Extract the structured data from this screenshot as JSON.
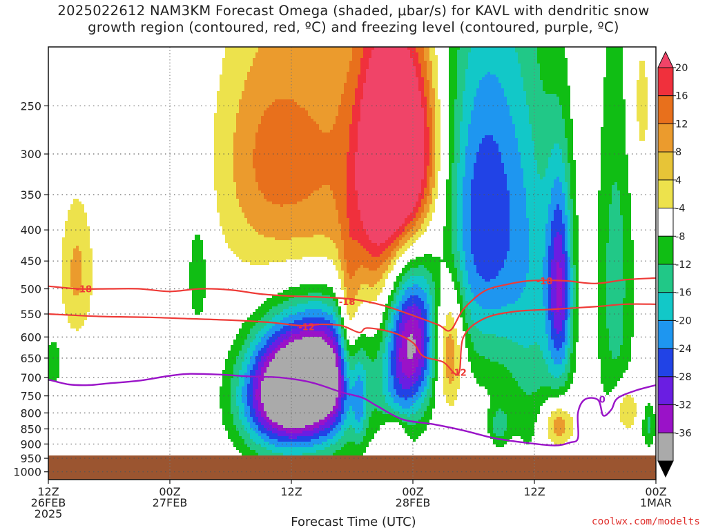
{
  "chart_data": {
    "type": "heatmap",
    "title": {
      "line1": "2025022612 NAM3KM Forecast Omega (shaded, μbar/s) for KAVL with dendritic snow",
      "line2": "growth region (contoured, red, ºC) and freezing level (contoured, purple, ºC)"
    },
    "xlabel": "Forecast Time (UTC)",
    "ylabel": "",
    "x_ticks": [
      {
        "t": 0,
        "lines": [
          "12Z",
          "26FEB",
          "2025"
        ]
      },
      {
        "t": 12,
        "lines": [
          "00Z",
          "27FEB"
        ]
      },
      {
        "t": 24,
        "lines": [
          "12Z"
        ]
      },
      {
        "t": 36,
        "lines": [
          "00Z",
          "28FEB"
        ]
      },
      {
        "t": 48,
        "lines": [
          "12Z"
        ]
      },
      {
        "t": 60,
        "lines": [
          "00Z",
          "1MAR"
        ]
      }
    ],
    "x_range_hours": [
      0,
      60
    ],
    "y_ticks": [
      250,
      300,
      350,
      400,
      450,
      500,
      550,
      600,
      650,
      700,
      750,
      800,
      850,
      900,
      950,
      1000
    ],
    "y_range_hpa": [
      200,
      1030
    ],
    "y_scale": "log-pressure",
    "ground_level_hpa": 940,
    "colorbar": {
      "labels": [
        "20",
        "16",
        "12",
        "8",
        "4",
        "-4",
        "-8",
        "-12",
        "-16",
        "-20",
        "-24",
        "-28",
        "-32",
        "-36"
      ],
      "colors": [
        "#f04468",
        "#f0303c",
        "#e8701c",
        "#eb9b2d",
        "#e7c437",
        "#ede24c",
        "#ffffff",
        "#10be14",
        "#21c887",
        "#12c8c8",
        "#1e96f0",
        "#2143e6",
        "#6a1ee2",
        "#9a12c8",
        "#aaaaaa",
        "#000000"
      ]
    },
    "omega_features": [
      {
        "t": 27.0,
        "p": 340,
        "st": 6,
        "sp": 180,
        "v": 12
      },
      {
        "t": 21.0,
        "p": 300,
        "st": 3,
        "sp": 80,
        "v": 6
      },
      {
        "t": 34.8,
        "p": 300,
        "st": 2.4,
        "sp": 85,
        "v": 34
      },
      {
        "t": 32.6,
        "p": 350,
        "st": 1.6,
        "sp": 140,
        "v": 9
      },
      {
        "t": 42.0,
        "p": 390,
        "st": 2.6,
        "sp": 170,
        "v": -15
      },
      {
        "t": 45.0,
        "p": 360,
        "st": 3.0,
        "sp": 200,
        "v": -12
      },
      {
        "t": 25.5,
        "p": 710,
        "st": 3.3,
        "sp": 130,
        "v": -42
      },
      {
        "t": 22.0,
        "p": 760,
        "st": 2.6,
        "sp": 110,
        "v": -18
      },
      {
        "t": 28.0,
        "p": 660,
        "st": 2.0,
        "sp": 120,
        "v": -10
      },
      {
        "t": 36.2,
        "p": 610,
        "st": 1.6,
        "sp": 120,
        "v": -28
      },
      {
        "t": 34.4,
        "p": 700,
        "st": 1.4,
        "sp": 180,
        "v": -12
      },
      {
        "t": 50.5,
        "p": 500,
        "st": 0.9,
        "sp": 140,
        "v": -24
      },
      {
        "t": 48.0,
        "p": 600,
        "st": 2.0,
        "sp": 260,
        "v": -8
      },
      {
        "t": 56.0,
        "p": 500,
        "st": 1.3,
        "sp": 250,
        "v": -10
      },
      {
        "t": 14.8,
        "p": 470,
        "st": 0.8,
        "sp": 80,
        "v": -8
      },
      {
        "t": 2.8,
        "p": 470,
        "st": 1.2,
        "sp": 90,
        "v": 9
      },
      {
        "t": 29.7,
        "p": 600,
        "st": 0.7,
        "sp": 130,
        "v": 13
      },
      {
        "t": 30.7,
        "p": 790,
        "st": 0.5,
        "sp": 90,
        "v": -8
      },
      {
        "t": 39.6,
        "p": 620,
        "st": 1.0,
        "sp": 110,
        "v": 17
      },
      {
        "t": 34.2,
        "p": 870,
        "st": 0.9,
        "sp": 50,
        "v": 12
      },
      {
        "t": 50.3,
        "p": 835,
        "st": 1.1,
        "sp": 55,
        "v": 14
      },
      {
        "t": 57.0,
        "p": 790,
        "st": 0.9,
        "sp": 55,
        "v": 11
      },
      {
        "t": 44.5,
        "p": 840,
        "st": 0.7,
        "sp": 45,
        "v": -9
      },
      {
        "t": 59.3,
        "p": 840,
        "st": 0.5,
        "sp": 55,
        "v": -9
      },
      {
        "t": 0.5,
        "p": 660,
        "st": 0.6,
        "sp": 45,
        "v": -8
      },
      {
        "t": 58.5,
        "p": 250,
        "st": 0.8,
        "sp": 60,
        "v": 6
      }
    ],
    "red_contours": [
      {
        "label": "-18",
        "points": [
          [
            0,
            495
          ],
          [
            3,
            500
          ],
          [
            6,
            500
          ],
          [
            9,
            500
          ],
          [
            12,
            505
          ],
          [
            15,
            500
          ],
          [
            18,
            502
          ],
          [
            21,
            510
          ],
          [
            24,
            514
          ],
          [
            27,
            516
          ],
          [
            30,
            520
          ],
          [
            33,
            532
          ],
          [
            36,
            553
          ],
          [
            38.5,
            573
          ],
          [
            39.7,
            585
          ],
          [
            41,
            540
          ],
          [
            43,
            505
          ],
          [
            45,
            493
          ],
          [
            47.5,
            485
          ],
          [
            51,
            485
          ],
          [
            54,
            490
          ],
          [
            57,
            483
          ],
          [
            60,
            480
          ]
        ]
      },
      {
        "label": "-12",
        "points": [
          [
            0,
            550
          ],
          [
            5,
            555
          ],
          [
            10,
            557
          ],
          [
            14,
            560
          ],
          [
            18,
            563
          ],
          [
            22,
            568
          ],
          [
            25,
            575
          ],
          [
            27,
            572
          ],
          [
            29,
            575
          ],
          [
            30.7,
            590
          ],
          [
            31.5,
            580
          ],
          [
            34,
            590
          ],
          [
            36,
            613
          ],
          [
            37,
            645
          ],
          [
            39,
            660
          ],
          [
            40.5,
            690
          ],
          [
            41,
            600
          ],
          [
            43,
            560
          ],
          [
            46,
            545
          ],
          [
            50,
            540
          ],
          [
            54,
            535
          ],
          [
            57,
            530
          ],
          [
            60,
            530
          ]
        ]
      }
    ],
    "red_contour_labels": [
      {
        "text": "-18",
        "t": 3.5,
        "p": 500
      },
      {
        "text": "-18",
        "t": 29.5,
        "p": 525
      },
      {
        "text": "-12",
        "t": 25.5,
        "p": 577
      },
      {
        "text": "-12",
        "t": 40.5,
        "p": 686
      },
      {
        "text": "-18",
        "t": 49.0,
        "p": 485
      }
    ],
    "purple_contour": {
      "label": "0",
      "points": [
        [
          0,
          705
        ],
        [
          2,
          718
        ],
        [
          4,
          720
        ],
        [
          6,
          715
        ],
        [
          9,
          708
        ],
        [
          12,
          695
        ],
        [
          14,
          690
        ],
        [
          17,
          692
        ],
        [
          20,
          697
        ],
        [
          23,
          700
        ],
        [
          26,
          713
        ],
        [
          29,
          740
        ],
        [
          31,
          755
        ],
        [
          32.5,
          780
        ],
        [
          35,
          820
        ],
        [
          38,
          835
        ],
        [
          41,
          855
        ],
        [
          44,
          880
        ],
        [
          47,
          895
        ],
        [
          50,
          905
        ],
        [
          51.5,
          895
        ],
        [
          52.3,
          880
        ],
        [
          52.3,
          800
        ],
        [
          53,
          760
        ],
        [
          54.3,
          762
        ],
        [
          54.8,
          808
        ],
        [
          55.6,
          790
        ],
        [
          56.2,
          757
        ],
        [
          58,
          735
        ],
        [
          60,
          720
        ]
      ]
    },
    "purple_contour_label": {
      "text": "0",
      "t": 54.7,
      "p": 760
    }
  },
  "credit": "coolwx.com/modelts"
}
